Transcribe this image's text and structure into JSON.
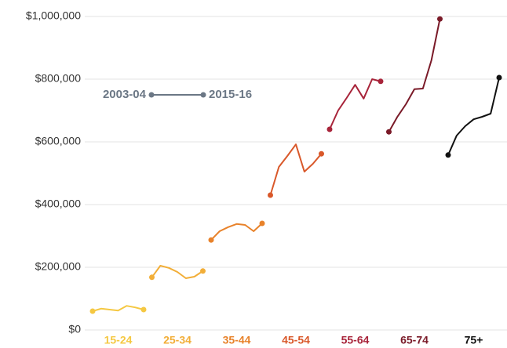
{
  "chart_data": {
    "type": "line",
    "categories": [
      "2003-04",
      null,
      null,
      null,
      null,
      null,
      "2015-16"
    ],
    "series": [
      {
        "name": "15-24",
        "color": "#f5c842",
        "values": [
          60000,
          68000,
          65000,
          62000,
          77000,
          72000,
          65000
        ]
      },
      {
        "name": "25-34",
        "color": "#f2ae38",
        "values": [
          168000,
          205000,
          198000,
          185000,
          165000,
          170000,
          188000
        ]
      },
      {
        "name": "35-44",
        "color": "#e8822a",
        "values": [
          287000,
          315000,
          328000,
          338000,
          335000,
          315000,
          340000
        ]
      },
      {
        "name": "45-54",
        "color": "#d9582a",
        "values": [
          430000,
          520000,
          555000,
          592000,
          505000,
          530000,
          562000
        ]
      },
      {
        "name": "55-64",
        "color": "#a8243a",
        "values": [
          640000,
          700000,
          740000,
          782000,
          738000,
          800000,
          793000
        ]
      },
      {
        "name": "65-74",
        "color": "#7a1a28",
        "values": [
          632000,
          680000,
          720000,
          768000,
          770000,
          860000,
          992000
        ]
      },
      {
        "name": "75+",
        "color": "#111111",
        "values": [
          558000,
          620000,
          650000,
          672000,
          680000,
          690000,
          805000
        ]
      }
    ],
    "ylim": [
      0,
      1000000
    ],
    "yticks": [
      {
        "value": 0,
        "label": "$0"
      },
      {
        "value": 200000,
        "label": "$200,000"
      },
      {
        "value": 400000,
        "label": "$400,000"
      },
      {
        "value": 600000,
        "label": "$600,000"
      },
      {
        "value": 800000,
        "label": "$800,000"
      },
      {
        "value": 1000000,
        "label": "$1,000,000"
      }
    ],
    "grid": true
  }
}
